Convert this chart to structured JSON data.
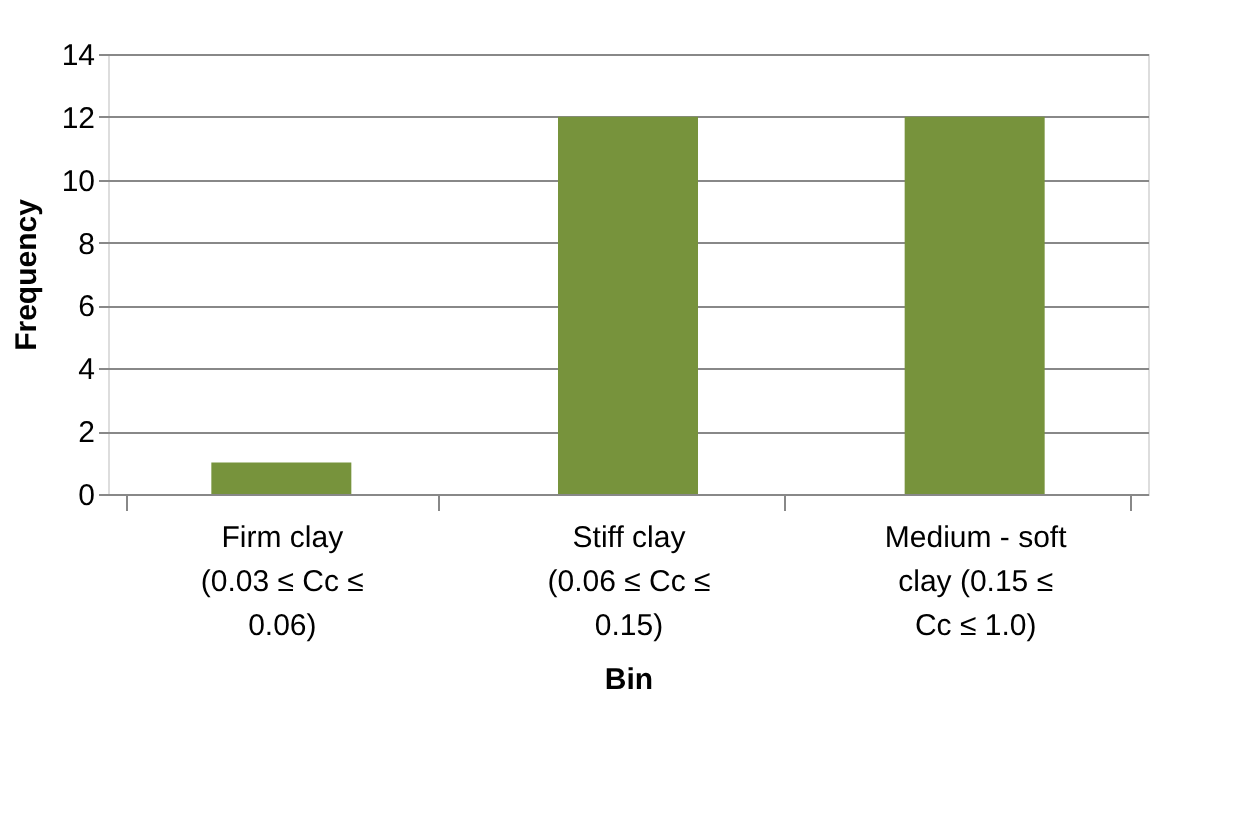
{
  "chart_data": {
    "type": "bar",
    "xlabel": "Bin",
    "ylabel": "Frequency",
    "categories": [
      "Firm clay (0.03 ≤ Cc ≤ 0.06)",
      "Stiff clay (0.06 ≤ Cc ≤ 0.15)",
      "Medium - soft clay (0.15 ≤ Cc ≤ 1.0)"
    ],
    "values": [
      1,
      12,
      12
    ],
    "color": "#77933c",
    "ylim": [
      0,
      14
    ],
    "yticks": [
      0,
      2,
      4,
      6,
      8,
      10,
      12,
      14
    ],
    "grid": "y"
  }
}
